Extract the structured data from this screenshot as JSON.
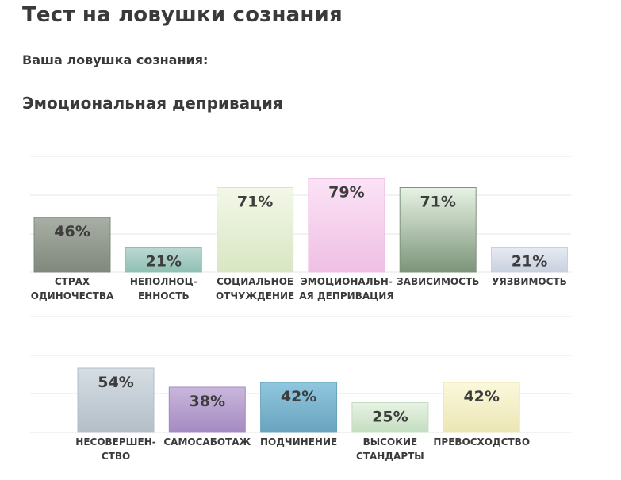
{
  "header": {
    "title": "Тест на ловушки сознания",
    "result_label": "Ваша ловушка сознания:",
    "result_value": "Эмоциональная депривация"
  },
  "chart_data": [
    {
      "type": "bar",
      "title": "",
      "ylim": [
        0,
        100
      ],
      "grid": true,
      "categories": [
        "СТРАХ ОДИНОЧЕСТВА",
        "НЕПОЛНОЦЕННОСТЬ",
        "СОЦИАЛЬНОЕ ОТЧУЖДЕНИЕ",
        "ЭМОЦИОНАЛЬНАЯ ДЕПРИВАЦИЯ",
        "ЗАВИСИМОСТЬ",
        "УЯЗВИМОСТЬ"
      ],
      "label_lines": [
        [
          "СТРАХ",
          "ОДИНОЧЕСТВА"
        ],
        [
          "НЕПОЛНОЦ-",
          "ЕННОСТЬ"
        ],
        [
          "СОЦИАЛЬНОЕ",
          "ОТЧУЖДЕНИЕ"
        ],
        [
          "ЭМОЦИОНАЛЬН-",
          "АЯ ДЕПРИВАЦИЯ"
        ],
        [
          "ЗАВИСИМОСТЬ"
        ],
        [
          "УЯЗВИМОСТЬ"
        ]
      ],
      "values": [
        46,
        21,
        71,
        79,
        71,
        21
      ],
      "value_labels": [
        "46%",
        "21%",
        "71%",
        "79%",
        "71%",
        "21%"
      ],
      "colors": [
        [
          "#a9afa5",
          "#7f887d"
        ],
        [
          "#bcd9d2",
          "#8fbfb3"
        ],
        [
          "#f3f8e8",
          "#d8e6c2"
        ],
        [
          "#fbe3f6",
          "#efbfe4"
        ],
        [
          "#e7f3e4",
          "#7c947a"
        ],
        [
          "#e7ebf2",
          "#c9d1df"
        ]
      ]
    },
    {
      "type": "bar",
      "title": "",
      "ylim": [
        0,
        100
      ],
      "grid": true,
      "categories": [
        "НЕСОВЕРШЕНСТВО",
        "САМОСАБОТАЖ",
        "ПОДЧИНЕНИЕ",
        "ВЫСОКИЕ СТАНДАРТЫ",
        "ПРЕВОСХОДСТВО"
      ],
      "label_lines": [
        [
          "НЕСОВЕРШЕН-",
          "СТВО"
        ],
        [
          "САМОСАБОТАЖ"
        ],
        [
          "ПОДЧИНЕНИЕ"
        ],
        [
          "ВЫСОКИЕ",
          "СТАНДАРТЫ"
        ],
        [
          "ПРЕВОСХОДСТВО"
        ]
      ],
      "values": [
        54,
        38,
        42,
        25,
        42
      ],
      "value_labels": [
        "54%",
        "38%",
        "42%",
        "25%",
        "42%"
      ],
      "colors": [
        [
          "#d6dde3",
          "#b3bec8"
        ],
        [
          "#c9b7dc",
          "#a48ac2"
        ],
        [
          "#8fc7e0",
          "#6aa3bd"
        ],
        [
          "#e8f3e4",
          "#c4ddc0"
        ],
        [
          "#fbf8dc",
          "#ece6b4"
        ]
      ]
    }
  ]
}
